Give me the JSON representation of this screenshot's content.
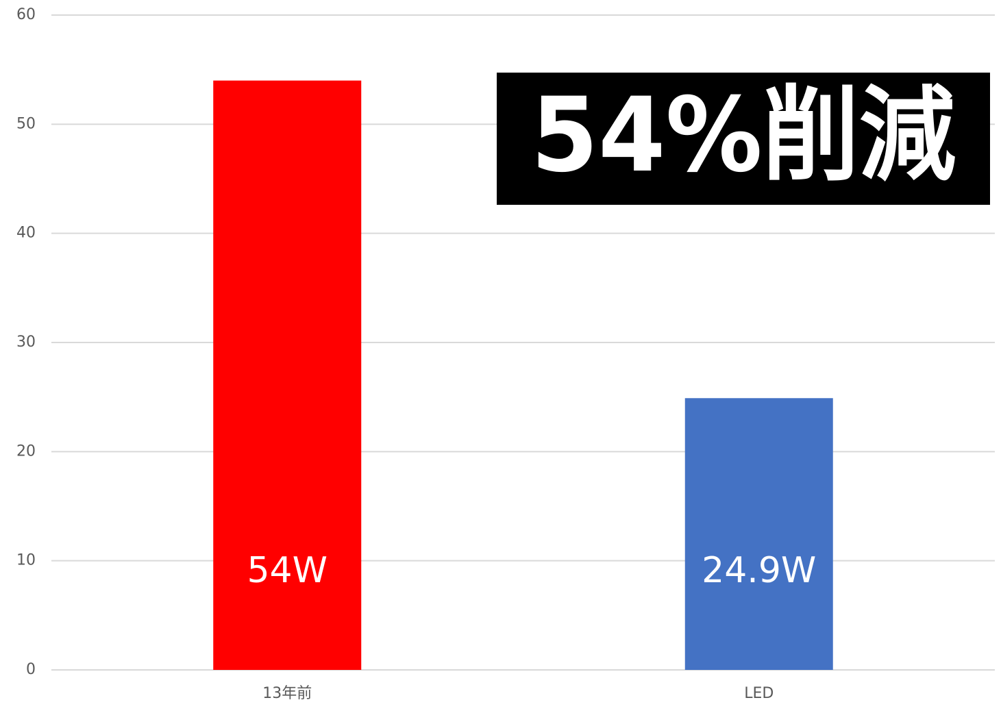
{
  "chart_data": {
    "type": "bar",
    "categories": [
      "13年前",
      "LED"
    ],
    "values": [
      54,
      24.9
    ],
    "value_labels": [
      "54W",
      "24.9W"
    ],
    "colors": [
      "#ff0000",
      "#4472c4"
    ],
    "annotation": "54%削減",
    "ylim": [
      0,
      60
    ],
    "yticks": [
      0,
      10,
      20,
      30,
      40,
      50,
      60
    ],
    "grid": true
  }
}
